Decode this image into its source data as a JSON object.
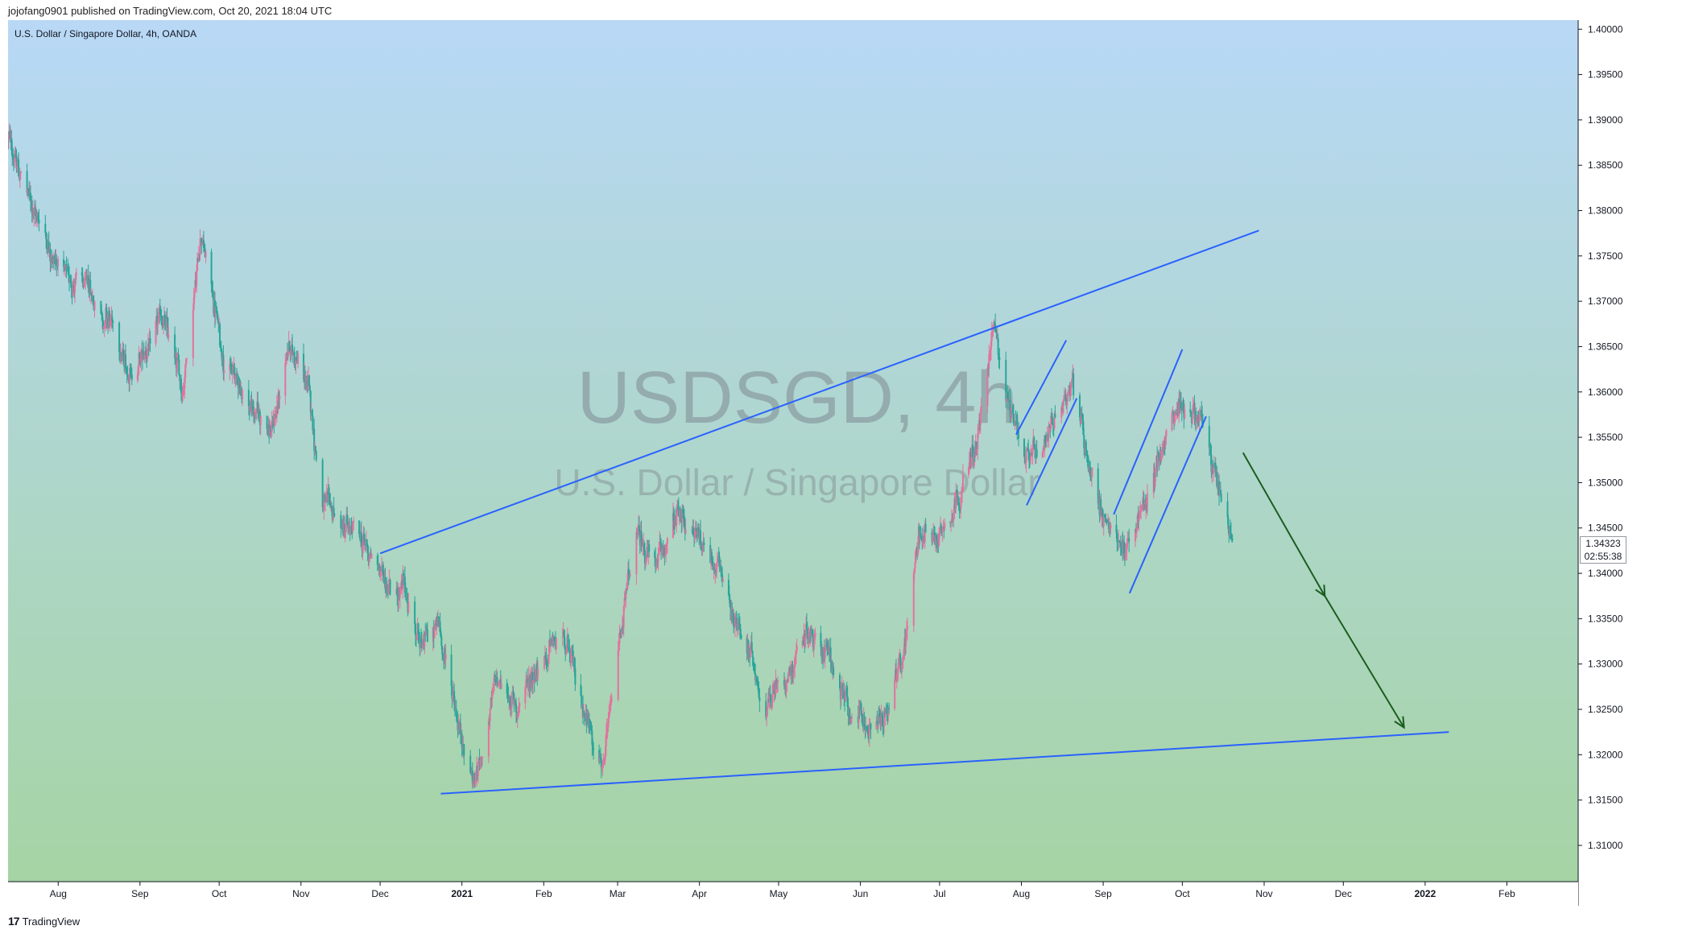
{
  "header": {
    "publish_caption": "jojofang0901 published on TradingView.com, Oct 20, 2021 18:04 UTC",
    "symbol_caption": "U.S. Dollar / Singapore Dollar, 4h, OANDA"
  },
  "watermark": {
    "symbol": "USDSGD, 4h",
    "name": "U.S. Dollar / Singapore Dollar"
  },
  "last_price": {
    "value": "1.34323",
    "countdown": "02:55:38"
  },
  "footer": {
    "brand": "TradingView",
    "logo": "17"
  },
  "colors": {
    "background_top": "#b8d8f6",
    "background_bottom": "#a6d4a4",
    "up_candle": "#e2739d",
    "down_candle": "#26a69a",
    "trendline": "#2962ff",
    "projection_arrow": "#1b5e20"
  },
  "chart_data": {
    "type": "candlestick",
    "x_start": "2020-07-13",
    "x_end": "2022-02-28",
    "ylim": [
      1.306,
      1.401
    ],
    "y_ticks": [
      "1.40000",
      "1.39500",
      "1.39000",
      "1.38500",
      "1.38000",
      "1.37500",
      "1.37000",
      "1.36500",
      "1.36000",
      "1.35500",
      "1.35000",
      "1.34500",
      "1.34000",
      "1.33500",
      "1.33000",
      "1.32500",
      "1.32000",
      "1.31500",
      "1.31000"
    ],
    "x_ticks": [
      {
        "label": "Aug",
        "date": "2020-08-01",
        "bold": false
      },
      {
        "label": "Sep",
        "date": "2020-09-01",
        "bold": false
      },
      {
        "label": "Oct",
        "date": "2020-10-01",
        "bold": false
      },
      {
        "label": "Nov",
        "date": "2020-11-01",
        "bold": false
      },
      {
        "label": "Dec",
        "date": "2020-12-01",
        "bold": false
      },
      {
        "label": "2021",
        "date": "2021-01-01",
        "bold": true
      },
      {
        "label": "Feb",
        "date": "2021-02-01",
        "bold": false
      },
      {
        "label": "Mar",
        "date": "2021-03-01",
        "bold": false
      },
      {
        "label": "Apr",
        "date": "2021-04-01",
        "bold": false
      },
      {
        "label": "May",
        "date": "2021-05-01",
        "bold": false
      },
      {
        "label": "Jun",
        "date": "2021-06-01",
        "bold": false
      },
      {
        "label": "Jul",
        "date": "2021-07-01",
        "bold": false
      },
      {
        "label": "Aug",
        "date": "2021-08-01",
        "bold": false
      },
      {
        "label": "Sep",
        "date": "2021-09-01",
        "bold": false
      },
      {
        "label": "Oct",
        "date": "2021-10-01",
        "bold": false
      },
      {
        "label": "Nov",
        "date": "2021-11-01",
        "bold": false
      },
      {
        "label": "Dec",
        "date": "2021-12-01",
        "bold": false
      },
      {
        "label": "2022",
        "date": "2022-01-01",
        "bold": true
      },
      {
        "label": "Feb",
        "date": "2022-02-01",
        "bold": false
      }
    ],
    "price_path": [
      [
        "2020-07-13",
        1.388
      ],
      [
        "2020-07-20",
        1.382
      ],
      [
        "2020-08-03",
        1.373
      ],
      [
        "2020-08-12",
        1.371
      ],
      [
        "2020-08-20",
        1.368
      ],
      [
        "2020-08-27",
        1.362
      ],
      [
        "2020-09-03",
        1.364
      ],
      [
        "2020-09-10",
        1.368
      ],
      [
        "2020-09-17",
        1.36
      ],
      [
        "2020-09-24",
        1.378
      ],
      [
        "2020-10-02",
        1.365
      ],
      [
        "2020-10-08",
        1.361
      ],
      [
        "2020-10-14",
        1.358
      ],
      [
        "2020-10-21",
        1.356
      ],
      [
        "2020-10-28",
        1.365
      ],
      [
        "2020-11-04",
        1.36
      ],
      [
        "2020-11-09",
        1.348
      ],
      [
        "2020-11-16",
        1.345
      ],
      [
        "2020-11-25",
        1.343
      ],
      [
        "2020-12-01",
        1.34
      ],
      [
        "2020-12-10",
        1.338
      ],
      [
        "2020-12-17",
        1.332
      ],
      [
        "2020-12-23",
        1.334
      ],
      [
        "2021-01-01",
        1.322
      ],
      [
        "2021-01-06",
        1.317
      ],
      [
        "2021-01-14",
        1.328
      ],
      [
        "2021-01-22",
        1.325
      ],
      [
        "2021-01-29",
        1.33
      ],
      [
        "2021-02-08",
        1.333
      ],
      [
        "2021-02-15",
        1.326
      ],
      [
        "2021-02-24",
        1.319
      ],
      [
        "2021-03-02",
        1.333
      ],
      [
        "2021-03-08",
        1.344
      ],
      [
        "2021-03-16",
        1.341
      ],
      [
        "2021-03-24",
        1.346
      ],
      [
        "2021-04-01",
        1.344
      ],
      [
        "2021-04-08",
        1.341
      ],
      [
        "2021-04-16",
        1.334
      ],
      [
        "2021-04-26",
        1.326
      ],
      [
        "2021-05-04",
        1.329
      ],
      [
        "2021-05-12",
        1.334
      ],
      [
        "2021-05-19",
        1.332
      ],
      [
        "2021-05-27",
        1.325
      ],
      [
        "2021-06-03",
        1.323
      ],
      [
        "2021-06-10",
        1.324
      ],
      [
        "2021-06-17",
        1.33
      ],
      [
        "2021-06-23",
        1.345
      ],
      [
        "2021-06-30",
        1.344
      ],
      [
        "2021-07-08",
        1.349
      ],
      [
        "2021-07-15",
        1.354
      ],
      [
        "2021-07-22",
        1.368
      ],
      [
        "2021-07-26",
        1.36
      ],
      [
        "2021-08-02",
        1.354
      ],
      [
        "2021-08-09",
        1.352
      ],
      [
        "2021-08-16",
        1.358
      ],
      [
        "2021-08-20",
        1.362
      ],
      [
        "2021-08-27",
        1.352
      ],
      [
        "2021-09-03",
        1.344
      ],
      [
        "2021-09-10",
        1.343
      ],
      [
        "2021-09-16",
        1.347
      ],
      [
        "2021-09-22",
        1.353
      ],
      [
        "2021-09-30",
        1.359
      ],
      [
        "2021-10-06",
        1.358
      ],
      [
        "2021-10-13",
        1.351
      ],
      [
        "2021-10-20",
        1.3432
      ]
    ],
    "last_price": 1.34323
  },
  "drawings": {
    "upper_trendline": {
      "from": [
        "2020-12-01",
        1.3422
      ],
      "to": [
        "2021-10-30",
        1.3778
      ]
    },
    "lower_trendline": {
      "from": [
        "2020-12-24",
        1.3157
      ],
      "to": [
        "2022-01-10",
        1.3225
      ]
    },
    "channel_aug": {
      "lines": [
        [
          [
            "2021-07-30",
            1.3553
          ],
          [
            "2021-08-18",
            1.3657
          ]
        ],
        [
          [
            "2021-08-03",
            1.3475
          ],
          [
            "2021-08-22",
            1.3593
          ]
        ]
      ]
    },
    "channel_sep": {
      "lines": [
        [
          [
            "2021-09-05",
            1.3465
          ],
          [
            "2021-10-01",
            1.3647
          ]
        ],
        [
          [
            "2021-09-11",
            1.3378
          ],
          [
            "2021-10-10",
            1.3573
          ]
        ]
      ]
    },
    "projection_arrows": [
      [
        [
          "2021-10-24",
          1.3533
        ],
        [
          "2021-11-24",
          1.3375
        ]
      ],
      [
        [
          "2021-11-24",
          1.3375
        ],
        [
          "2021-12-24",
          1.323
        ]
      ]
    ]
  }
}
